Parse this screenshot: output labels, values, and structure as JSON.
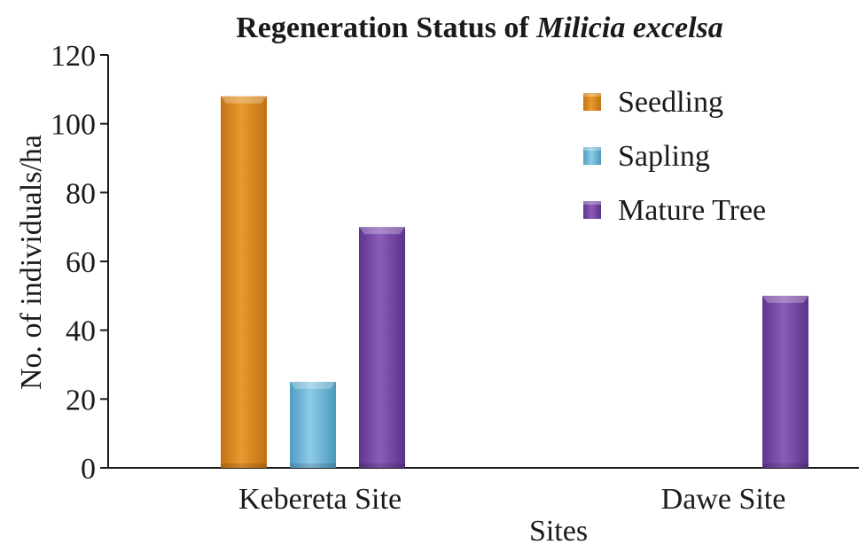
{
  "chart_data": {
    "type": "bar",
    "title": "Regeneration Status of ",
    "title_species": "Milicia excelsa",
    "xlabel": "Sites",
    "ylabel": "No. of individuals/ha",
    "categories": [
      "Kebereta Site",
      "Dawe Site"
    ],
    "ylim": [
      0,
      120
    ],
    "yticks": [
      0,
      20,
      40,
      60,
      80,
      100,
      120
    ],
    "grid": false,
    "legend_position": "top-right",
    "series": [
      {
        "name": "Seedling",
        "color": "#d98a1e",
        "values": [
          108,
          0
        ]
      },
      {
        "name": "Sapling",
        "color": "#6fb8d6",
        "values": [
          25,
          0
        ]
      },
      {
        "name": "Mature Tree",
        "color": "#7a4ca6",
        "values": [
          70,
          50
        ]
      }
    ]
  }
}
